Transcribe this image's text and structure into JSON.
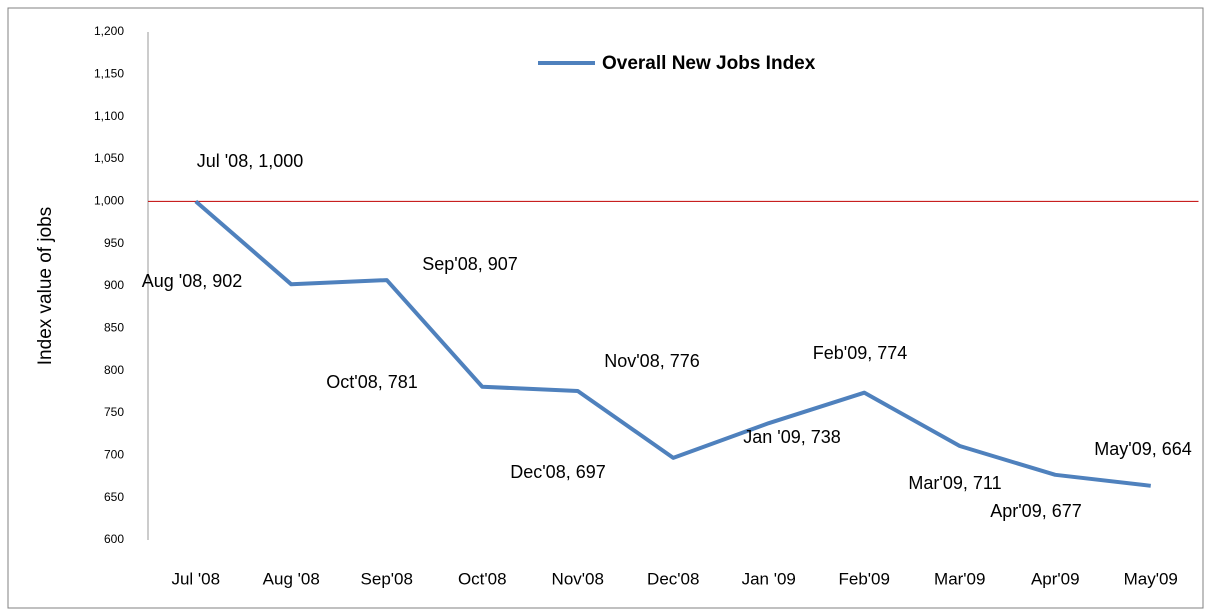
{
  "chart_data": {
    "type": "line",
    "legend": "Overall New Jobs Index",
    "y_label": "Index value  of jobs",
    "categories": [
      "Jul '08",
      "Aug '08",
      "Sep'08",
      "Oct'08",
      "Nov'08",
      "Dec'08",
      "Jan '09",
      "Feb'09",
      "Mar'09",
      "Apr'09",
      "May'09"
    ],
    "values": [
      1000,
      902,
      907,
      781,
      776,
      697,
      738,
      774,
      711,
      677,
      664
    ],
    "value_labels": [
      "Jul '08, 1,000",
      "Aug '08, 902",
      "Sep'08, 907",
      "Oct'08, 781",
      "Nov'08, 776",
      "Dec'08, 697",
      "Jan '09, 738",
      "Feb'09, 774",
      "Mar'09, 711",
      "Apr'09, 677",
      "May'09, 664"
    ],
    "color": "#4f81bd",
    "ylim": [
      600,
      1200
    ],
    "yticks": [
      600,
      650,
      700,
      750,
      800,
      850,
      900,
      950,
      {
        "value": 1000,
        "label": "1,000"
      },
      {
        "value": 1050,
        "label": "1,050"
      },
      {
        "value": 1100,
        "label": "1,100"
      },
      {
        "value": 1150,
        "label": "1,150"
      },
      {
        "value": 1200,
        "label": "1,200"
      }
    ],
    "reference_line": {
      "value": 1000,
      "color": "#c00000"
    }
  }
}
